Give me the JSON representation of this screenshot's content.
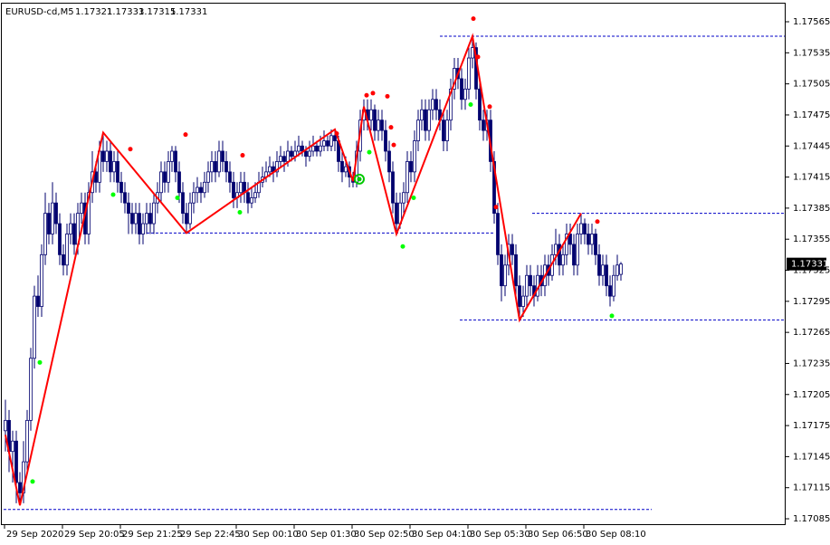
{
  "chart_data": {
    "type": "candlestick",
    "symbol": "EURUSD-cd,M5",
    "header": {
      "open": 1.17321,
      "high": 1.17333,
      "low": 1.17315,
      "close": 1.17331
    },
    "last_price": 1.17331,
    "ylim": [
      1.170789,
      1.175825
    ],
    "xlim": [
      0,
      215.5
    ],
    "yticks": [
      1.17565,
      1.17535,
      1.17505,
      1.17475,
      1.17445,
      1.17415,
      1.17385,
      1.17355,
      1.17325,
      1.17295,
      1.17265,
      1.17235,
      1.17205,
      1.17175,
      1.17145,
      1.17115,
      1.17085
    ],
    "xticks": [
      {
        "value": 0,
        "label": "29 Sep 2020"
      },
      {
        "value": 16,
        "label": "29 Sep 20:05"
      },
      {
        "value": 32,
        "label": "29 Sep 21:25"
      },
      {
        "value": 48,
        "label": "29 Sep 22:45"
      },
      {
        "value": 64,
        "label": "30 Sep 00:10"
      },
      {
        "value": 80,
        "label": "30 Sep 01:30"
      },
      {
        "value": 96,
        "label": "30 Sep 02:50"
      },
      {
        "value": 112,
        "label": "30 Sep 04:10"
      },
      {
        "value": 128,
        "label": "30 Sep 05:30"
      },
      {
        "value": 144,
        "label": "30 Sep 06:50"
      },
      {
        "value": 160,
        "label": "30 Sep 08:10"
      }
    ],
    "candle_color": "#00006e",
    "candles": [
      [
        1.1717,
        1.172,
        1.1715,
        1.1718
      ],
      [
        1.1718,
        1.1719,
        1.1713,
        1.1715
      ],
      [
        1.1715,
        1.1717,
        1.1712,
        1.1716
      ],
      [
        1.1716,
        1.1717,
        1.171,
        1.1712
      ],
      [
        1.1712,
        1.1713,
        1.17098,
        1.1711
      ],
      [
        1.1711,
        1.1716,
        1.171,
        1.1714
      ],
      [
        1.1714,
        1.1719,
        1.1713,
        1.1718
      ],
      [
        1.1718,
        1.1725,
        1.1717,
        1.1724
      ],
      [
        1.1724,
        1.1731,
        1.1723,
        1.173
      ],
      [
        1.173,
        1.1732,
        1.1728,
        1.1729
      ],
      [
        1.1729,
        1.1735,
        1.1728,
        1.1734
      ],
      [
        1.1734,
        1.174,
        1.1733,
        1.1738
      ],
      [
        1.1738,
        1.1739,
        1.1735,
        1.1736
      ],
      [
        1.1736,
        1.1741,
        1.1735,
        1.1739
      ],
      [
        1.1739,
        1.174,
        1.1736,
        1.1737
      ],
      [
        1.1737,
        1.1738,
        1.1733,
        1.1734
      ],
      [
        1.1734,
        1.1735,
        1.1732,
        1.1733
      ],
      [
        1.1733,
        1.1737,
        1.1732,
        1.1736
      ],
      [
        1.1736,
        1.1738,
        1.1735,
        1.1737
      ],
      [
        1.1737,
        1.1738,
        1.1734,
        1.1735
      ],
      [
        1.1735,
        1.1739,
        1.1734,
        1.1738
      ],
      [
        1.1738,
        1.174,
        1.1737,
        1.1739
      ],
      [
        1.1739,
        1.174,
        1.1735,
        1.1736
      ],
      [
        1.1736,
        1.1741,
        1.1735,
        1.174
      ],
      [
        1.174,
        1.1744,
        1.1739,
        1.1742
      ],
      [
        1.1742,
        1.1743,
        1.174,
        1.1741
      ],
      [
        1.1741,
        1.1745,
        1.174,
        1.1744
      ],
      [
        1.1744,
        1.17458,
        1.1742,
        1.1743
      ],
      [
        1.1743,
        1.1745,
        1.1742,
        1.1744
      ],
      [
        1.1744,
        1.1745,
        1.1741,
        1.1742
      ],
      [
        1.1742,
        1.1744,
        1.1741,
        1.1743
      ],
      [
        1.1743,
        1.1744,
        1.174,
        1.1741
      ],
      [
        1.1741,
        1.1742,
        1.1739,
        1.174
      ],
      [
        1.174,
        1.1741,
        1.1738,
        1.1739
      ],
      [
        1.1739,
        1.174,
        1.1736,
        1.1738
      ],
      [
        1.1738,
        1.1739,
        1.1736,
        1.1737
      ],
      [
        1.1737,
        1.1739,
        1.1736,
        1.1738
      ],
      [
        1.1738,
        1.1739,
        1.1735,
        1.1736
      ],
      [
        1.1736,
        1.1738,
        1.1735,
        1.1737
      ],
      [
        1.1737,
        1.1739,
        1.1736,
        1.1738
      ],
      [
        1.1738,
        1.1739,
        1.1736,
        1.1737
      ],
      [
        1.1737,
        1.174,
        1.1736,
        1.1739
      ],
      [
        1.1739,
        1.1741,
        1.1738,
        1.174
      ],
      [
        1.174,
        1.1743,
        1.1739,
        1.1742
      ],
      [
        1.1742,
        1.1743,
        1.174,
        1.1741
      ],
      [
        1.1741,
        1.1744,
        1.174,
        1.1743
      ],
      [
        1.1743,
        1.17445,
        1.1742,
        1.1744
      ],
      [
        1.1744,
        1.17445,
        1.1741,
        1.1742
      ],
      [
        1.1742,
        1.1743,
        1.1739,
        1.174
      ],
      [
        1.174,
        1.1741,
        1.1737,
        1.1738
      ],
      [
        1.1738,
        1.1739,
        1.17361,
        1.1737
      ],
      [
        1.1737,
        1.174,
        1.17365,
        1.1739
      ],
      [
        1.1739,
        1.1741,
        1.1738,
        1.174
      ],
      [
        1.174,
        1.17415,
        1.1739,
        1.17405
      ],
      [
        1.17405,
        1.1741,
        1.1739,
        1.174
      ],
      [
        1.174,
        1.1742,
        1.17395,
        1.1741
      ],
      [
        1.1741,
        1.1743,
        1.174,
        1.1742
      ],
      [
        1.1742,
        1.1744,
        1.1741,
        1.1743
      ],
      [
        1.1743,
        1.1744,
        1.1741,
        1.1742
      ],
      [
        1.1742,
        1.1745,
        1.17415,
        1.1744
      ],
      [
        1.1744,
        1.1745,
        1.1742,
        1.1743
      ],
      [
        1.1743,
        1.1744,
        1.1741,
        1.1742
      ],
      [
        1.1742,
        1.1743,
        1.174,
        1.1741
      ],
      [
        1.1741,
        1.1742,
        1.17385,
        1.17395
      ],
      [
        1.17395,
        1.1741,
        1.17385,
        1.174
      ],
      [
        1.174,
        1.1742,
        1.1739,
        1.1741
      ],
      [
        1.1741,
        1.1742,
        1.1739,
        1.174
      ],
      [
        1.174,
        1.1741,
        1.1738,
        1.1739
      ],
      [
        1.1739,
        1.17405,
        1.17385,
        1.17395
      ],
      [
        1.17395,
        1.1741,
        1.1739,
        1.174
      ],
      [
        1.174,
        1.1742,
        1.17395,
        1.1741
      ],
      [
        1.1741,
        1.17425,
        1.17405,
        1.17415
      ],
      [
        1.17415,
        1.1743,
        1.1741,
        1.1742
      ],
      [
        1.1742,
        1.17435,
        1.17415,
        1.17425
      ],
      [
        1.17425,
        1.1743,
        1.1741,
        1.1742
      ],
      [
        1.1742,
        1.1744,
        1.17415,
        1.1743
      ],
      [
        1.1743,
        1.17445,
        1.17425,
        1.17435
      ],
      [
        1.17435,
        1.1744,
        1.1742,
        1.1743
      ],
      [
        1.1743,
        1.1745,
        1.17425,
        1.1744
      ],
      [
        1.1744,
        1.17445,
        1.1743,
        1.17435
      ],
      [
        1.17435,
        1.1745,
        1.1743,
        1.1744
      ],
      [
        1.1744,
        1.17455,
        1.17435,
        1.17445
      ],
      [
        1.17445,
        1.1745,
        1.17435,
        1.1744
      ],
      [
        1.1744,
        1.17445,
        1.17425,
        1.17435
      ],
      [
        1.17435,
        1.1745,
        1.1743,
        1.1744
      ],
      [
        1.1744,
        1.17455,
        1.17435,
        1.17445
      ],
      [
        1.17445,
        1.1745,
        1.17435,
        1.1744
      ],
      [
        1.1744,
        1.17455,
        1.17435,
        1.17445
      ],
      [
        1.17445,
        1.1746,
        1.1744,
        1.1745
      ],
      [
        1.1745,
        1.17455,
        1.1744,
        1.17445
      ],
      [
        1.17445,
        1.17461,
        1.1744,
        1.17455
      ],
      [
        1.17455,
        1.17461,
        1.1744,
        1.1745
      ],
      [
        1.1745,
        1.17455,
        1.1742,
        1.1743
      ],
      [
        1.1743,
        1.1744,
        1.1741,
        1.1742
      ],
      [
        1.1742,
        1.17435,
        1.17415,
        1.17425
      ],
      [
        1.17425,
        1.1743,
        1.17405,
        1.17415
      ],
      [
        1.17415,
        1.1742,
        1.17405,
        1.1741
      ],
      [
        1.1741,
        1.1745,
        1.17405,
        1.1744
      ],
      [
        1.1744,
        1.1748,
        1.1743,
        1.1747
      ],
      [
        1.1747,
        1.1749,
        1.1746,
        1.1748
      ],
      [
        1.1748,
        1.1749,
        1.1746,
        1.1747
      ],
      [
        1.1747,
        1.1749,
        1.1746,
        1.1748
      ],
      [
        1.1748,
        1.17485,
        1.1745,
        1.1746
      ],
      [
        1.1746,
        1.1748,
        1.1745,
        1.1747
      ],
      [
        1.1747,
        1.1748,
        1.1745,
        1.1746
      ],
      [
        1.1746,
        1.1747,
        1.1743,
        1.1744
      ],
      [
        1.1744,
        1.1745,
        1.1741,
        1.1742
      ],
      [
        1.1742,
        1.1743,
        1.1738,
        1.1739
      ],
      [
        1.1739,
        1.174,
        1.1736,
        1.1737
      ],
      [
        1.1737,
        1.174,
        1.17365,
        1.1739
      ],
      [
        1.1739,
        1.1741,
        1.1738,
        1.174
      ],
      [
        1.174,
        1.1744,
        1.1739,
        1.1743
      ],
      [
        1.1743,
        1.1744,
        1.1741,
        1.1742
      ],
      [
        1.1742,
        1.1746,
        1.1741,
        1.1745
      ],
      [
        1.1745,
        1.1748,
        1.1744,
        1.1747
      ],
      [
        1.1747,
        1.1749,
        1.1746,
        1.1748
      ],
      [
        1.1748,
        1.1749,
        1.1745,
        1.1746
      ],
      [
        1.1746,
        1.1749,
        1.1745,
        1.1748
      ],
      [
        1.1748,
        1.175,
        1.1747,
        1.1749
      ],
      [
        1.1749,
        1.175,
        1.1747,
        1.1748
      ],
      [
        1.1748,
        1.1749,
        1.1746,
        1.1747
      ],
      [
        1.1747,
        1.1748,
        1.1744,
        1.1745
      ],
      [
        1.1745,
        1.1748,
        1.1744,
        1.1747
      ],
      [
        1.1747,
        1.1751,
        1.1746,
        1.175
      ],
      [
        1.175,
        1.1753,
        1.1749,
        1.1752
      ],
      [
        1.1752,
        1.1753,
        1.175,
        1.1751
      ],
      [
        1.1751,
        1.1752,
        1.1748,
        1.1749
      ],
      [
        1.1749,
        1.1751,
        1.1748,
        1.175
      ],
      [
        1.175,
        1.1754,
        1.1749,
        1.1753
      ],
      [
        1.1753,
        1.17551,
        1.1752,
        1.1754
      ],
      [
        1.1754,
        1.17545,
        1.1749,
        1.175
      ],
      [
        1.175,
        1.1751,
        1.1746,
        1.1747
      ],
      [
        1.1747,
        1.1748,
        1.1745,
        1.1746
      ],
      [
        1.1746,
        1.1748,
        1.1745,
        1.1747
      ],
      [
        1.1747,
        1.1748,
        1.1742,
        1.1743
      ],
      [
        1.1743,
        1.1744,
        1.1737,
        1.1738
      ],
      [
        1.1738,
        1.1739,
        1.1733,
        1.1734
      ],
      [
        1.1734,
        1.1735,
        1.17295,
        1.1731
      ],
      [
        1.1731,
        1.1734,
        1.173,
        1.1733
      ],
      [
        1.1733,
        1.1736,
        1.1732,
        1.1735
      ],
      [
        1.1735,
        1.1736,
        1.1733,
        1.1734
      ],
      [
        1.1734,
        1.1735,
        1.173,
        1.1731
      ],
      [
        1.1731,
        1.1732,
        1.17277,
        1.1729
      ],
      [
        1.1729,
        1.1731,
        1.1728,
        1.173
      ],
      [
        1.173,
        1.1733,
        1.1729,
        1.1732
      ],
      [
        1.1732,
        1.1733,
        1.173,
        1.1731
      ],
      [
        1.1731,
        1.1732,
        1.1729,
        1.173
      ],
      [
        1.173,
        1.1733,
        1.17295,
        1.1732
      ],
      [
        1.1732,
        1.1733,
        1.173,
        1.1731
      ],
      [
        1.1731,
        1.1734,
        1.173,
        1.1733
      ],
      [
        1.1733,
        1.1734,
        1.1731,
        1.1732
      ],
      [
        1.1732,
        1.1735,
        1.17315,
        1.1734
      ],
      [
        1.1734,
        1.17365,
        1.1733,
        1.1735
      ],
      [
        1.1735,
        1.1736,
        1.1732,
        1.1733
      ],
      [
        1.1733,
        1.1735,
        1.1732,
        1.1734
      ],
      [
        1.1734,
        1.1737,
        1.1733,
        1.1736
      ],
      [
        1.1736,
        1.1737,
        1.1734,
        1.1735
      ],
      [
        1.1735,
        1.1736,
        1.1732,
        1.1733
      ],
      [
        1.1733,
        1.1737,
        1.1732,
        1.1736
      ],
      [
        1.1736,
        1.1738,
        1.1735,
        1.1737
      ],
      [
        1.1737,
        1.17375,
        1.1735,
        1.1736
      ],
      [
        1.1736,
        1.1737,
        1.1734,
        1.1735
      ],
      [
        1.1735,
        1.1737,
        1.1734,
        1.1736
      ],
      [
        1.1736,
        1.17365,
        1.1733,
        1.1734
      ],
      [
        1.1734,
        1.1735,
        1.1731,
        1.1732
      ],
      [
        1.1732,
        1.1734,
        1.1731,
        1.1733
      ],
      [
        1.1733,
        1.1734,
        1.173,
        1.1731
      ],
      [
        1.1731,
        1.1732,
        1.1729,
        1.173
      ],
      [
        1.173,
        1.1733,
        1.17295,
        1.1732
      ],
      [
        1.1732,
        1.1734,
        1.17315,
        1.1733
      ],
      [
        1.17321,
        1.17333,
        1.17315,
        1.17331
      ]
    ],
    "zigzag": {
      "color": "#ff0000",
      "x": [
        0,
        4,
        27,
        50,
        91,
        96,
        99,
        108,
        129,
        142,
        159
      ],
      "y": [
        1.17166,
        1.17098,
        1.17458,
        1.17361,
        1.17461,
        1.17411,
        1.17483,
        1.1736,
        1.17551,
        1.17277,
        1.1738
      ]
    },
    "levels": {
      "color": "#0000c8",
      "items": [
        {
          "price": 1.17551,
          "from": 120,
          "to": 215.5
        },
        {
          "price": 1.1738,
          "from": 145.5,
          "to": 215.5
        },
        {
          "price": 1.17361,
          "from": 36.5,
          "to": 135
        },
        {
          "price": 1.17277,
          "from": 125.5,
          "to": 215.5
        },
        {
          "price": 1.17094,
          "from": -0.5,
          "to": 178.5
        }
      ]
    },
    "dots": [
      {
        "color": "#ff0000",
        "x": [
          34.5,
          49.75,
          65.5,
          91.5,
          99.75,
          101.5,
          105.5,
          106.5,
          107.25,
          129.25,
          130.5,
          133.75,
          135.5,
          163.5
        ],
        "y": [
          1.17442,
          1.17456,
          1.17436,
          1.17457,
          1.17494,
          1.17496,
          1.17493,
          1.17463,
          1.17446,
          1.17568,
          1.17531,
          1.17483,
          1.17386,
          1.17372
        ]
      },
      {
        "color": "#00ff00",
        "x": [
          7.5,
          9.5,
          29.75,
          47.5,
          64.75,
          100.5,
          109.75,
          112.75,
          128.5,
          167.5
        ],
        "y": [
          1.17121,
          1.17236,
          1.17398,
          1.17395,
          1.17381,
          1.17439,
          1.17348,
          1.17395,
          1.17485,
          1.17281
        ]
      }
    ],
    "signal": {
      "color": "#00c800",
      "x": 97.75,
      "y": 1.17413
    }
  }
}
